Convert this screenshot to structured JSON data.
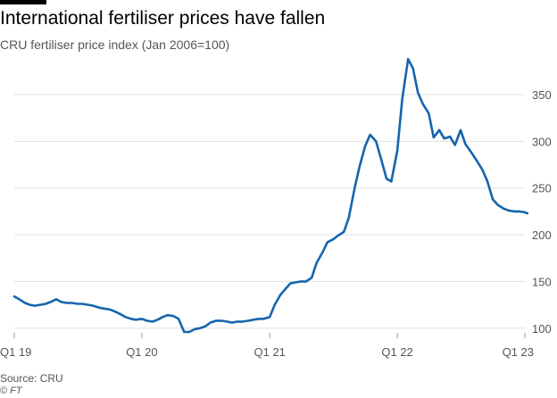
{
  "header": {
    "title": "International fertiliser prices have fallen",
    "subtitle": "CRU fertiliser price index (Jan 2006=100)"
  },
  "footer": {
    "source": "Source: CRU",
    "credit": "© FT"
  },
  "colors": {
    "line": "#1565ad",
    "grid": "#e0e0e0",
    "text": "#555555"
  },
  "chart_data": {
    "type": "line",
    "title": "International fertiliser prices have fallen",
    "subtitle": "CRU fertiliser price index (Jan 2006=100)",
    "xlabel": "",
    "ylabel": "",
    "ylim": [
      95,
      392
    ],
    "yticks": [
      100,
      150,
      200,
      250,
      300,
      350
    ],
    "xticks": [
      {
        "x": "2019-01-01",
        "label": "Q1 19"
      },
      {
        "x": "2020-01-01",
        "label": "Q1 20"
      },
      {
        "x": "2021-01-01",
        "label": "Q1 21"
      },
      {
        "x": "2022-01-01",
        "label": "Q1 22"
      },
      {
        "x": "2023-01-01",
        "label": "Q1 23"
      }
    ],
    "grid": true,
    "legend": "none",
    "series": [
      {
        "x": [
          "2019-01-01",
          "2019-01-15",
          "2019-02-01",
          "2019-02-15",
          "2019-03-01",
          "2019-03-15",
          "2019-04-01",
          "2019-04-15",
          "2019-05-01",
          "2019-05-15",
          "2019-06-01",
          "2019-06-15",
          "2019-07-01",
          "2019-07-15",
          "2019-08-01",
          "2019-08-15",
          "2019-09-01",
          "2019-09-15",
          "2019-10-01",
          "2019-10-15",
          "2019-11-01",
          "2019-11-15",
          "2019-12-01",
          "2019-12-15",
          "2020-01-01",
          "2020-01-15",
          "2020-02-01",
          "2020-02-15",
          "2020-03-01",
          "2020-03-15",
          "2020-04-01",
          "2020-04-15",
          "2020-05-01",
          "2020-05-15",
          "2020-06-01",
          "2020-06-15",
          "2020-07-01",
          "2020-07-15",
          "2020-08-01",
          "2020-08-15",
          "2020-09-01",
          "2020-09-15",
          "2020-10-01",
          "2020-10-15",
          "2020-11-01",
          "2020-11-15",
          "2020-12-01",
          "2020-12-15",
          "2021-01-01",
          "2021-01-15",
          "2021-02-01",
          "2021-02-15",
          "2021-03-01",
          "2021-03-15",
          "2021-04-01",
          "2021-04-15",
          "2021-05-01",
          "2021-05-15",
          "2021-06-01",
          "2021-06-15",
          "2021-07-01",
          "2021-07-15",
          "2021-08-01",
          "2021-08-15",
          "2021-09-01",
          "2021-09-15",
          "2021-10-01",
          "2021-10-15",
          "2021-11-01",
          "2021-11-15",
          "2021-12-01",
          "2021-12-15",
          "2022-01-01",
          "2022-01-15",
          "2022-02-01",
          "2022-02-15",
          "2022-03-01",
          "2022-03-15",
          "2022-04-01",
          "2022-04-15",
          "2022-05-01",
          "2022-05-15",
          "2022-06-01",
          "2022-06-15",
          "2022-07-01",
          "2022-07-15",
          "2022-08-01",
          "2022-08-15",
          "2022-09-01",
          "2022-09-15",
          "2022-10-01",
          "2022-10-15",
          "2022-11-01",
          "2022-11-15",
          "2022-12-01",
          "2022-12-15",
          "2023-01-01",
          "2023-01-08"
        ],
        "values": [
          134,
          131,
          127,
          125,
          124,
          125,
          126,
          128,
          131,
          128,
          127,
          127,
          126,
          126,
          125,
          124,
          122,
          121,
          120,
          118,
          115,
          112,
          110,
          109,
          110,
          108,
          107,
          109,
          112,
          114,
          113,
          110,
          96,
          96,
          99,
          100,
          102,
          106,
          108,
          108,
          107,
          106,
          107,
          107,
          108,
          109,
          110,
          110,
          112,
          125,
          136,
          142,
          148,
          149,
          150,
          150,
          154,
          170,
          181,
          192,
          195,
          199,
          203,
          218,
          250,
          273,
          295,
          307,
          300,
          282,
          260,
          257,
          290,
          345,
          388,
          378,
          352,
          340,
          330,
          304,
          312,
          303,
          305,
          296,
          312,
          297,
          288,
          280,
          270,
          258,
          238,
          232,
          228,
          226,
          225,
          225,
          224,
          223
        ]
      }
    ]
  }
}
